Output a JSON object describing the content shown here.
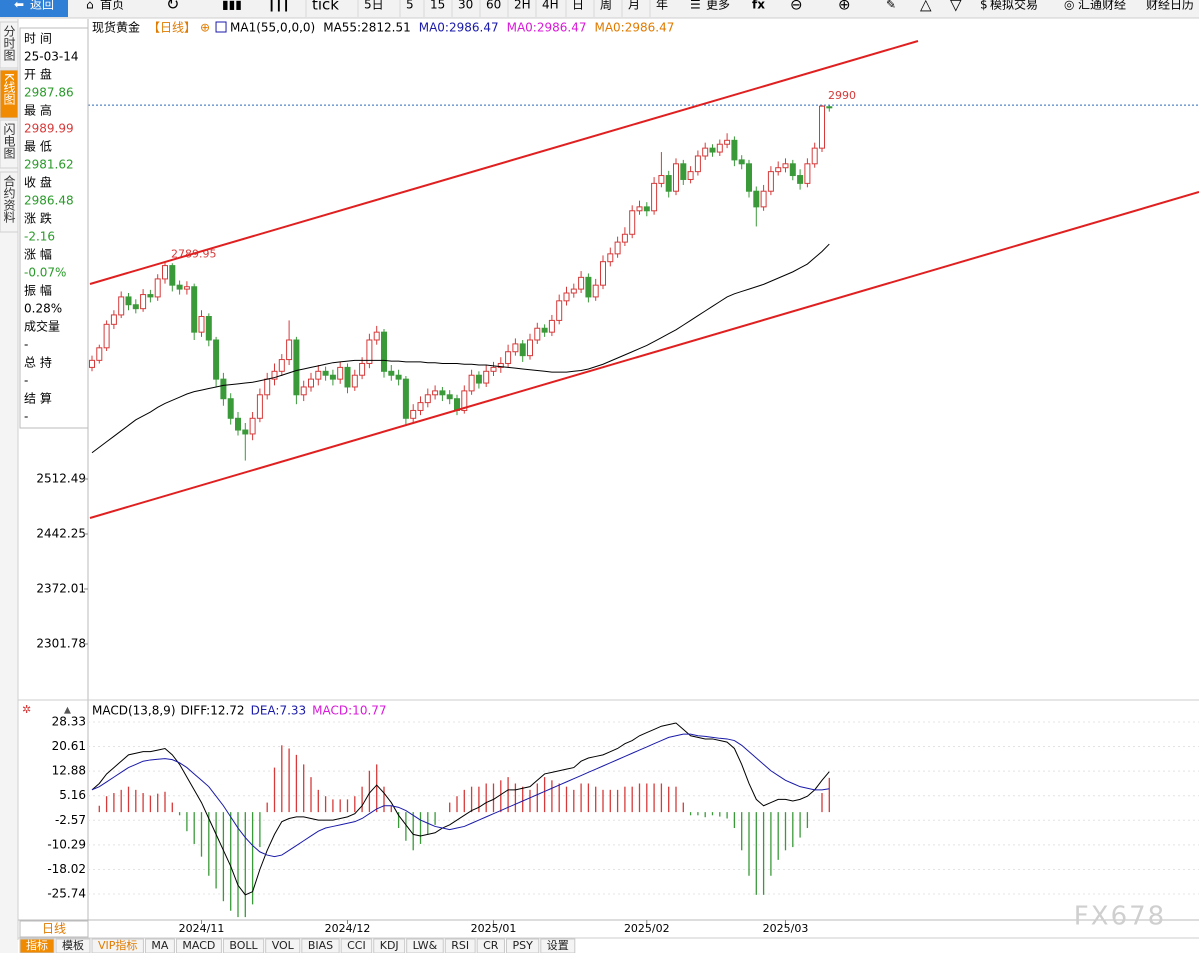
{
  "toolbar": {
    "back": "返回",
    "home": "首页",
    "periods": [
      "tick",
      "5日",
      "5",
      "15",
      "30",
      "60",
      "2H",
      "4H",
      "日",
      "周",
      "月",
      "年"
    ],
    "more": "更多",
    "trade": "模拟交易",
    "news": "汇通财经",
    "calendar": "财经日历"
  },
  "side_tabs": [
    "分时图",
    "K线图",
    "闪电图",
    "合约资料"
  ],
  "info_panel": [
    {
      "label": "时 间",
      "value": "25-03-14",
      "color": "#000000"
    },
    {
      "label": "开 盘",
      "value": 2987.86,
      "color": "#2a9a2a"
    },
    {
      "label": "最 高",
      "value": 2989.99,
      "color": "#d63a3a"
    },
    {
      "label": "最 低",
      "value": 2981.62,
      "color": "#2a9a2a"
    },
    {
      "label": "收 盘",
      "value": 2986.48,
      "color": "#2a9a2a"
    },
    {
      "label": "涨 跌",
      "value": -2.16,
      "color": "#2a9a2a"
    },
    {
      "label": "涨 幅",
      "value": "-0.07%",
      "color": "#2a9a2a"
    },
    {
      "label": "振 幅",
      "value": "0.28%",
      "color": "#000000"
    },
    {
      "label": "成交量",
      "value": "-",
      "color": "#000000"
    },
    {
      "label": "总 持",
      "value": "-",
      "color": "#000000"
    },
    {
      "label": "结 算",
      "value": "-",
      "color": "#000000"
    }
  ],
  "bottom": {
    "period": "日线",
    "tabs": [
      "指标",
      "模板",
      "VIP指标",
      "MA",
      "MACD",
      "BOLL",
      "VOL",
      "BIAS",
      "CCI",
      "KDJ",
      "LW&",
      "RSI",
      "CR",
      "PSY",
      "设置"
    ]
  },
  "watermark": "FX678",
  "chart_data": [
    {
      "type": "candlestick",
      "title": "现货黄金",
      "period": "【日线】",
      "legend": [
        {
          "text": "MA1(55,0,0,0)",
          "color": "#000000"
        },
        {
          "text": "MA55:2812.51",
          "color": "#000000"
        },
        {
          "text": "MA0:2986.47",
          "color": "#1a1aa8"
        },
        {
          "text": "MA0:2986.47",
          "color": "#d81ad8"
        },
        {
          "text": "MA0:2986.47",
          "color": "#e07b00"
        }
      ],
      "up_color": "#d63a3a",
      "down_color": "#3a9a3a",
      "ylim": [
        2243.0,
        3096.1
      ],
      "yticks": [
        2512.49,
        2442.25,
        2372.01,
        2301.78
      ],
      "categories": [
        null,
        null,
        null,
        null,
        null,
        null,
        null,
        null,
        null,
        null,
        null,
        null,
        null,
        null,
        null,
        "2024/11",
        null,
        null,
        null,
        null,
        null,
        null,
        null,
        null,
        null,
        null,
        null,
        null,
        null,
        null,
        null,
        null,
        null,
        null,
        null,
        "2024/12",
        null,
        null,
        null,
        null,
        null,
        null,
        null,
        null,
        null,
        null,
        null,
        null,
        null,
        null,
        null,
        null,
        null,
        null,
        null,
        "2025/01",
        null,
        null,
        null,
        null,
        null,
        null,
        null,
        null,
        null,
        null,
        null,
        null,
        null,
        null,
        null,
        null,
        null,
        null,
        null,
        null,
        "2025/02",
        null,
        null,
        null,
        null,
        null,
        null,
        null,
        null,
        null,
        null,
        null,
        null,
        null,
        null,
        null,
        null,
        null,
        null,
        "2025/03",
        null,
        null,
        null,
        null,
        null,
        null
      ],
      "candles": [
        [
          2655,
          2670,
          2650,
          2664
        ],
        [
          2664,
          2684,
          2660,
          2680
        ],
        [
          2680,
          2715,
          2676,
          2710
        ],
        [
          2710,
          2728,
          2704,
          2722
        ],
        [
          2722,
          2752,
          2718,
          2745
        ],
        [
          2745,
          2750,
          2728,
          2735
        ],
        [
          2735,
          2742,
          2724,
          2730
        ],
        [
          2730,
          2755,
          2726,
          2748
        ],
        [
          2748,
          2754,
          2738,
          2745
        ],
        [
          2745,
          2774,
          2740,
          2768
        ],
        [
          2768,
          2789.95,
          2762,
          2785
        ],
        [
          2785,
          2788,
          2752,
          2760
        ],
        [
          2760,
          2766,
          2748,
          2755
        ],
        [
          2755,
          2765,
          2748,
          2758
        ],
        [
          2758,
          2762,
          2690,
          2700
        ],
        [
          2700,
          2728,
          2694,
          2720
        ],
        [
          2720,
          2724,
          2682,
          2690
        ],
        [
          2690,
          2694,
          2630,
          2640
        ],
        [
          2640,
          2648,
          2606,
          2615
        ],
        [
          2615,
          2622,
          2582,
          2590
        ],
        [
          2590,
          2598,
          2568,
          2575
        ],
        [
          2575,
          2584,
          2536,
          2570
        ],
        [
          2570,
          2598,
          2562,
          2590
        ],
        [
          2590,
          2628,
          2585,
          2620
        ],
        [
          2620,
          2648,
          2614,
          2640
        ],
        [
          2640,
          2660,
          2632,
          2650
        ],
        [
          2650,
          2672,
          2644,
          2665
        ],
        [
          2665,
          2715,
          2658,
          2690
        ],
        [
          2690,
          2694,
          2608,
          2620
        ],
        [
          2620,
          2638,
          2612,
          2630
        ],
        [
          2630,
          2648,
          2624,
          2640
        ],
        [
          2640,
          2658,
          2632,
          2650
        ],
        [
          2650,
          2656,
          2638,
          2645
        ],
        [
          2645,
          2652,
          2632,
          2640
        ],
        [
          2640,
          2662,
          2634,
          2655
        ],
        [
          2655,
          2660,
          2622,
          2630
        ],
        [
          2630,
          2652,
          2625,
          2645
        ],
        [
          2645,
          2668,
          2640,
          2660
        ],
        [
          2660,
          2698,
          2654,
          2690
        ],
        [
          2690,
          2708,
          2684,
          2700
        ],
        [
          2700,
          2704,
          2642,
          2650
        ],
        [
          2650,
          2658,
          2638,
          2645
        ],
        [
          2645,
          2652,
          2632,
          2640
        ],
        [
          2640,
          2644,
          2582,
          2590
        ],
        [
          2590,
          2608,
          2584,
          2600
        ],
        [
          2600,
          2618,
          2594,
          2610
        ],
        [
          2610,
          2628,
          2604,
          2620
        ],
        [
          2620,
          2632,
          2614,
          2625
        ],
        [
          2625,
          2630,
          2612,
          2620
        ],
        [
          2620,
          2626,
          2608,
          2615
        ],
        [
          2615,
          2620,
          2594,
          2600
        ],
        [
          2600,
          2632,
          2596,
          2625
        ],
        [
          2625,
          2652,
          2620,
          2645
        ],
        [
          2645,
          2650,
          2628,
          2635
        ],
        [
          2635,
          2658,
          2630,
          2650
        ],
        [
          2650,
          2662,
          2644,
          2655
        ],
        [
          2655,
          2668,
          2648,
          2660
        ],
        [
          2660,
          2684,
          2655,
          2675
        ],
        [
          2675,
          2692,
          2670,
          2685
        ],
        [
          2685,
          2690,
          2662,
          2670
        ],
        [
          2670,
          2698,
          2665,
          2690
        ],
        [
          2690,
          2712,
          2685,
          2705
        ],
        [
          2705,
          2710,
          2694,
          2700
        ],
        [
          2700,
          2722,
          2695,
          2715
        ],
        [
          2715,
          2748,
          2710,
          2740
        ],
        [
          2740,
          2758,
          2734,
          2750
        ],
        [
          2750,
          2762,
          2744,
          2755
        ],
        [
          2755,
          2778,
          2750,
          2770
        ],
        [
          2770,
          2775,
          2738,
          2745
        ],
        [
          2745,
          2768,
          2740,
          2760
        ],
        [
          2760,
          2798,
          2755,
          2790
        ],
        [
          2790,
          2808,
          2784,
          2800
        ],
        [
          2800,
          2822,
          2795,
          2815
        ],
        [
          2815,
          2834,
          2810,
          2825
        ],
        [
          2825,
          2862,
          2820,
          2855
        ],
        [
          2855,
          2868,
          2850,
          2860
        ],
        [
          2860,
          2866,
          2848,
          2855
        ],
        [
          2855,
          2898,
          2850,
          2890
        ],
        [
          2890,
          2930,
          2885,
          2900
        ],
        [
          2900,
          2906,
          2872,
          2880
        ],
        [
          2880,
          2922,
          2875,
          2915
        ],
        [
          2915,
          2920,
          2888,
          2895
        ],
        [
          2895,
          2912,
          2890,
          2905
        ],
        [
          2905,
          2932,
          2900,
          2925
        ],
        [
          2925,
          2942,
          2920,
          2935
        ],
        [
          2935,
          2940,
          2924,
          2930
        ],
        [
          2930,
          2946,
          2925,
          2940
        ],
        [
          2940,
          2954,
          2935,
          2945
        ],
        [
          2945,
          2950,
          2912,
          2920
        ],
        [
          2920,
          2926,
          2908,
          2915
        ],
        [
          2915,
          2920,
          2872,
          2880
        ],
        [
          2880,
          2886,
          2835,
          2860
        ],
        [
          2860,
          2888,
          2855,
          2880
        ],
        [
          2880,
          2912,
          2875,
          2905
        ],
        [
          2905,
          2918,
          2900,
          2910
        ],
        [
          2910,
          2922,
          2904,
          2915
        ],
        [
          2915,
          2920,
          2894,
          2900
        ],
        [
          2900,
          2908,
          2882,
          2890
        ],
        [
          2890,
          2922,
          2885,
          2915
        ],
        [
          2915,
          2942,
          2910,
          2935
        ],
        [
          2935,
          2990,
          2930,
          2988.64
        ],
        [
          2987.86,
          2989.99,
          2981.62,
          2986.48
        ]
      ],
      "ma": {
        "color": "#000000",
        "values": [
          2546,
          2553,
          2560,
          2567,
          2574,
          2581,
          2588,
          2593,
          2598,
          2604,
          2609,
          2613,
          2617,
          2621,
          2624,
          2626,
          2628,
          2630,
          2632,
          2633,
          2634,
          2635,
          2636,
          2638,
          2640,
          2642,
          2645,
          2648,
          2651,
          2653,
          2655,
          2657,
          2659,
          2661,
          2662,
          2663,
          2664,
          2664,
          2664,
          2664,
          2664,
          2663,
          2663,
          2662,
          2662,
          2662,
          2661,
          2661,
          2660,
          2660,
          2660,
          2659,
          2659,
          2658,
          2658,
          2657,
          2656,
          2655,
          2654,
          2653,
          2652,
          2651,
          2650,
          2649,
          2649,
          2649,
          2650,
          2651,
          2653,
          2656,
          2659,
          2663,
          2667,
          2671,
          2675,
          2679,
          2683,
          2688,
          2693,
          2698,
          2703,
          2709,
          2715,
          2721,
          2727,
          2733,
          2739,
          2745,
          2749,
          2752,
          2755,
          2758,
          2761,
          2765,
          2769,
          2773,
          2777,
          2782,
          2787,
          2795,
          2803,
          2812.51
        ]
      }
    },
    {
      "type": "macd",
      "title": "MACD(13,8,9)",
      "grid": true,
      "ylim": [
        -33.91,
        33.67
      ],
      "yticks": [
        28.33,
        20.61,
        12.88,
        5.16,
        -2.57,
        -10.29,
        -18.02,
        -25.74
      ],
      "up_color": "#d63a3a",
      "down_color": "#3a9a3a",
      "series": [
        {
          "name": "DIFF:12.72",
          "color": "#000000",
          "values": [
            7,
            9,
            12,
            14,
            16,
            18,
            18.5,
            19,
            19,
            19.5,
            20,
            18,
            15,
            11,
            7,
            3,
            -2,
            -7,
            -12,
            -17,
            -23,
            -26,
            -25,
            -18,
            -12,
            -7,
            -3,
            -2,
            -1.5,
            -1.5,
            -2,
            -2.5,
            -2.5,
            -2.5,
            -2,
            -1.5,
            -0.5,
            2,
            6,
            8.5,
            6,
            3,
            -1,
            -4,
            -7,
            -7.5,
            -7,
            -6.5,
            -5,
            -4,
            -2.5,
            -1,
            0.5,
            1.5,
            3,
            4,
            5.5,
            7,
            7,
            7.5,
            8,
            10,
            12,
            12.5,
            13,
            13.5,
            14,
            16,
            17,
            17.5,
            18,
            19,
            20,
            21.5,
            22.5,
            24,
            25,
            26,
            27,
            27.5,
            28,
            26,
            24,
            23.5,
            23,
            23,
            22.5,
            22,
            20,
            15,
            9,
            4,
            2,
            3,
            4,
            4,
            3.5,
            4,
            5,
            7,
            10,
            12.72
          ]
        },
        {
          "name": "DEA:7.33",
          "color": "#1a1aa8",
          "values": [
            7,
            8,
            9.5,
            11,
            12.5,
            14,
            15,
            16,
            16.4,
            16.6,
            16.8,
            16.5,
            15.5,
            14,
            12,
            10,
            8,
            5,
            2,
            -1.5,
            -5,
            -8,
            -10.5,
            -12.5,
            -13.5,
            -14,
            -13.5,
            -12,
            -10.5,
            -9,
            -7.5,
            -6,
            -5,
            -4.5,
            -4,
            -3.5,
            -3,
            -2,
            -0.5,
            1,
            2,
            2,
            1.5,
            0.5,
            -1,
            -2.5,
            -3.5,
            -4.5,
            -5,
            -5.5,
            -5,
            -4.5,
            -3.5,
            -2.5,
            -1.5,
            -0.5,
            0.5,
            1.5,
            2.5,
            3.5,
            4.5,
            5.5,
            6.5,
            7.5,
            8.5,
            9.5,
            10.5,
            11.5,
            12.5,
            13.5,
            14.5,
            15.5,
            16.5,
            17.5,
            18.5,
            19.5,
            20.5,
            21.5,
            22.5,
            23.5,
            24,
            24.5,
            24.5,
            24,
            23.8,
            23.5,
            23.2,
            23,
            22.5,
            21,
            19,
            17,
            15,
            13,
            11.5,
            10,
            9,
            8,
            7.5,
            7,
            7,
            7.33
          ]
        },
        {
          "name": "MACD:10.77",
          "color": "#d81ad8",
          "values": [
            0,
            2,
            5,
            6,
            7,
            8,
            7,
            6,
            5.2,
            5.8,
            6.4,
            3,
            -1,
            -6,
            -10,
            -14,
            -20,
            -24,
            -28,
            -31,
            -33,
            -33,
            -29,
            -11,
            3,
            14,
            21,
            20,
            18,
            15,
            11,
            7,
            5,
            4,
            4,
            4,
            5,
            8,
            13,
            15,
            8,
            2,
            -5,
            -9,
            -12,
            -10,
            -7,
            -4,
            0,
            3,
            5,
            7,
            8,
            8,
            9,
            9,
            10,
            11,
            9,
            8,
            7,
            9,
            11,
            10,
            9,
            8,
            7,
            9,
            9,
            8,
            7,
            7,
            7,
            8,
            8,
            9,
            9,
            9,
            9,
            8,
            8,
            3,
            -1,
            -1,
            -1.6,
            -1,
            -1.4,
            -2,
            -5,
            -12,
            -20,
            -26,
            -26,
            -20,
            -15,
            -12,
            -11,
            -8,
            -5,
            0,
            6,
            10.77
          ]
        }
      ]
    }
  ]
}
